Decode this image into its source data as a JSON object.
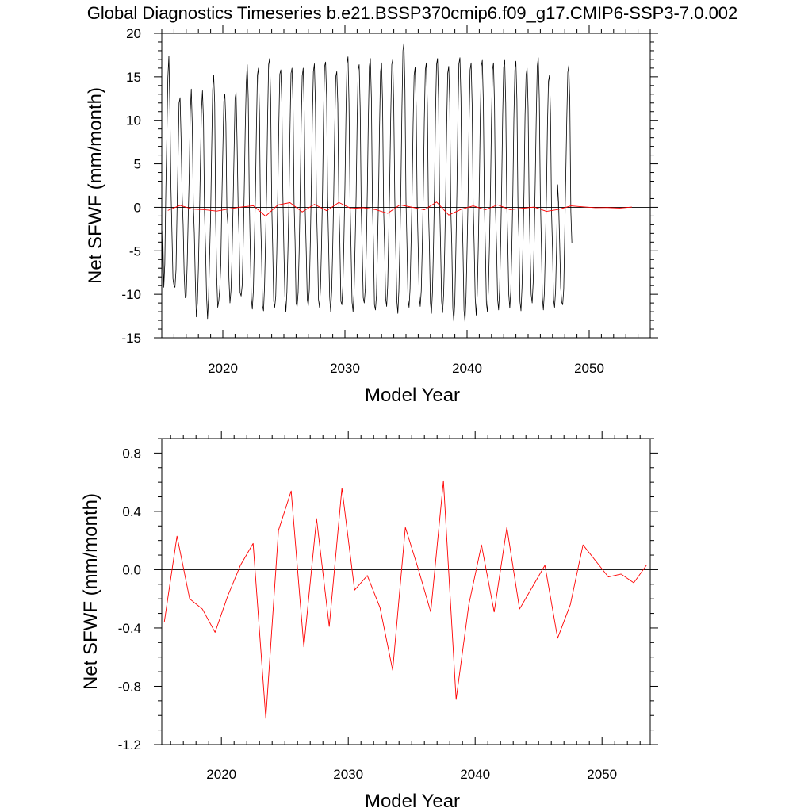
{
  "title": "Global Diagnostics Timeseries b.e21.BSSP370cmip6.f09_g17.CMIP6-SSP3-7.0.002",
  "colors": {
    "monthly": "#000000",
    "annual": "#ff0000",
    "zero_line": "#000000"
  },
  "chart_data": [
    {
      "type": "line",
      "xlabel": "Model Year",
      "ylabel": "Net SFWF (mm/month)",
      "xlim": [
        2015,
        2055
      ],
      "ylim": [
        -15,
        20
      ],
      "xticks": [
        2020,
        2030,
        2040,
        2050
      ],
      "yticks": [
        -15,
        -10,
        -5,
        0,
        5,
        10,
        15,
        20
      ],
      "ytick_labels": [
        "-15",
        "-10",
        "-5",
        "0",
        "5",
        "10",
        "15",
        "20"
      ],
      "grid": false,
      "reference_line": 0,
      "series": [
        {
          "style": "monthly",
          "x_start": 2015.0,
          "x_step": 0.08333,
          "values": [
            -8.5,
            -2.7,
            -9.2,
            -6.5,
            2.0,
            8.0,
            14.9,
            17.4,
            11.3,
            2.5,
            -2.8,
            -8.2,
            -9.0,
            -9.2,
            -7.2,
            -0.5,
            5.5,
            12.0,
            12.6,
            7.8,
            1.5,
            -2.0,
            -7.6,
            -10.4,
            -10.2,
            -6.5,
            -1.0,
            3.8,
            11.0,
            13.6,
            9.3,
            0.5,
            -3.0,
            -8.5,
            -12.6,
            -11.0,
            -7.0,
            -1.3,
            5.0,
            11.2,
            13.4,
            10.0,
            -0.6,
            -4.6,
            -10.2,
            -12.8,
            -10.4,
            -5.6,
            -1.0,
            6.5,
            13.5,
            15.2,
            12.0,
            -1.6,
            -8.0,
            -11.5,
            -10.8,
            -9.4,
            -6.6,
            0.5,
            6.5,
            12.2,
            13.0,
            9.7,
            -0.5,
            -2.0,
            -8.2,
            -11.0,
            -9.6,
            -5.8,
            -0.2,
            6.0,
            12.5,
            13.2,
            7.6,
            0.3,
            -3.5,
            -9.8,
            -10.2,
            -9.0,
            -4.5,
            1.6,
            8.8,
            14.2,
            16.4,
            12.5,
            1.0,
            -4.9,
            -10.5,
            -11.7,
            -9.6,
            -4.1,
            1.2,
            9.0,
            15.2,
            16.0,
            10.8,
            -0.8,
            -5.1,
            -11.3,
            -11.9,
            -9.1,
            -3.8,
            1.8,
            10.2,
            16.4,
            17.1,
            12.6,
            0.7,
            -4.6,
            -10.8,
            -11.5,
            -10.2,
            -5.3,
            1.5,
            9.4,
            15.3,
            15.8,
            12.0,
            1.5,
            -4.8,
            -10.2,
            -12.0,
            -9.7,
            -4.8,
            0.8,
            8.8,
            15.4,
            16.0,
            11.9,
            0.6,
            -3.9,
            -11.0,
            -11.4,
            -9.8,
            -5.1,
            1.4,
            9.6,
            15.1,
            16.0,
            11.0,
            -0.4,
            -5.2,
            -10.6,
            -11.3,
            -9.5,
            -4.0,
            2.6,
            10.3,
            15.6,
            16.5,
            11.8,
            0.4,
            -4.3,
            -10.6,
            -11.5,
            -9.2,
            -4.3,
            2.0,
            10.8,
            16.2,
            16.7,
            12.6,
            1.0,
            -4.5,
            -10.3,
            -12.0,
            -9.6,
            -4.7,
            1.6,
            9.2,
            15.0,
            15.6,
            11.9,
            0.4,
            -3.8,
            -10.8,
            -11.2,
            -9.0,
            -3.8,
            2.4,
            10.6,
            16.5,
            17.3,
            12.0,
            0.8,
            -4.6,
            -10.9,
            -12.0,
            -9.8,
            -4.4,
            1.2,
            9.8,
            15.8,
            16.4,
            11.4,
            0.0,
            -5.0,
            -10.4,
            -11.0,
            -9.4,
            -4.9,
            1.8,
            10.2,
            16.2,
            17.1,
            12.6,
            0.6,
            -4.1,
            -11.2,
            -11.8,
            -10.1,
            -4.6,
            1.0,
            9.2,
            15.6,
            16.6,
            12.0,
            -0.2,
            -4.6,
            -10.5,
            -11.4,
            -9.0,
            -3.5,
            2.8,
            10.6,
            16.4,
            17.0,
            11.4,
            1.0,
            -5.0,
            -10.7,
            -12.2,
            -9.6,
            -4.3,
            2.2,
            11.2,
            18.0,
            18.9,
            13.5,
            0.8,
            -4.5,
            -10.6,
            -11.5,
            -9.4,
            -4.0,
            1.6,
            9.6,
            15.2,
            16.1,
            11.6,
            0.5,
            -4.7,
            -10.2,
            -11.4,
            -9.6,
            -4.6,
            1.5,
            10.0,
            15.8,
            16.6,
            11.8,
            0.3,
            -4.4,
            -11.0,
            -12.2,
            -9.8,
            -4.5,
            2.0,
            10.8,
            16.4,
            17.1,
            12.5,
            1.0,
            -4.5,
            -10.8,
            -12.1,
            -10.0,
            -5.1,
            1.3,
            9.6,
            15.4,
            16.2,
            12.0,
            0.0,
            -4.4,
            -11.6,
            -13.1,
            -10.8,
            -5.0,
            1.6,
            10.2,
            16.5,
            17.2,
            12.6,
            0.2,
            -4.8,
            -11.8,
            -13.2,
            -10.3,
            -5.0,
            1.0,
            9.8,
            15.8,
            16.6,
            11.8,
            0.5,
            -4.4,
            -10.4,
            -12.4,
            -10.0,
            -4.8,
            1.8,
            10.4,
            16.2,
            16.9,
            12.1,
            0.6,
            -4.6,
            -11.0,
            -12.0,
            -9.5,
            -4.5,
            1.6,
            10.0,
            15.8,
            16.6,
            11.7,
            -0.4,
            -4.5,
            -10.5,
            -11.8,
            -9.5,
            -4.3,
            2.3,
            10.6,
            16.1,
            16.9,
            12.0,
            0.5,
            -4.0,
            -10.0,
            -11.6,
            -9.6,
            -4.7,
            1.5,
            10.2,
            15.8,
            16.8,
            12.3,
            0.3,
            -3.5,
            -10.8,
            -11.9,
            -9.2,
            -4.1,
            2.0,
            10.6,
            15.2,
            16.0,
            11.4,
            0.6,
            -5.0,
            -10.0,
            -11.0,
            -8.6,
            -3.8,
            2.8,
            10.3,
            16.2,
            17.2,
            12.5,
            1.3,
            -4.0,
            -10.4,
            -11.8,
            -9.8,
            -4.4,
            1.2,
            9.4,
            14.5,
            15.2,
            10.8,
            -0.5,
            -4.8,
            -10.6,
            -11.5,
            -9.6,
            -4.5,
            2.6,
            0.4,
            -4.0,
            -9.2,
            -10.9,
            -11.2,
            -9.4,
            -3.0,
            3.5,
            10.1,
            15.5,
            16.3,
            12.0,
            -0.5,
            -4.1
          ]
        },
        {
          "style": "annual",
          "x": [
            2015.5,
            2016.5,
            2017.5,
            2018.5,
            2019.5,
            2020.5,
            2021.5,
            2022.5,
            2023.5,
            2024.5,
            2025.5,
            2026.5,
            2027.5,
            2028.5,
            2029.5,
            2030.5,
            2031.5,
            2032.5,
            2033.5,
            2034.5,
            2035.5,
            2036.5,
            2037.5,
            2038.5,
            2039.5,
            2040.5,
            2041.5,
            2042.5,
            2043.5,
            2044.5,
            2045.5,
            2046.5,
            2047.5,
            2048.5,
            2049.5,
            2050.5,
            2051.5,
            2052.5,
            2053.5
          ],
          "values": [
            -0.36,
            0.23,
            -0.2,
            -0.27,
            -0.43,
            -0.18,
            0.03,
            0.18,
            -1.02,
            0.27,
            0.54,
            -0.53,
            0.35,
            -0.39,
            0.56,
            -0.14,
            -0.04,
            -0.26,
            -0.69,
            0.29,
            0.01,
            -0.29,
            0.61,
            -0.89,
            -0.24,
            0.17,
            -0.29,
            0.29,
            -0.27,
            -0.12,
            0.03,
            -0.47,
            -0.24,
            0.17,
            0.06,
            -0.05,
            -0.03,
            -0.09,
            0.03
          ]
        }
      ]
    },
    {
      "type": "line",
      "xlabel": "Model Year",
      "ylabel": "Net SFWF (mm/month)",
      "xlim": [
        2015.3,
        2053.8
      ],
      "ylim": [
        -1.2,
        0.9
      ],
      "xticks": [
        2020,
        2030,
        2040,
        2050
      ],
      "yticks": [
        -1.2,
        -0.8,
        -0.4,
        0.0,
        0.4,
        0.8
      ],
      "ytick_labels": [
        "-1.2",
        "-0.8",
        "-0.4",
        "0.0",
        "0.4",
        "0.8"
      ],
      "grid": false,
      "reference_line": 0,
      "series": [
        {
          "style": "annual",
          "x": [
            2015.5,
            2016.5,
            2017.5,
            2018.5,
            2019.5,
            2020.5,
            2021.5,
            2022.5,
            2023.5,
            2024.5,
            2025.5,
            2026.5,
            2027.5,
            2028.5,
            2029.5,
            2030.5,
            2031.5,
            2032.5,
            2033.5,
            2034.5,
            2035.5,
            2036.5,
            2037.5,
            2038.5,
            2039.5,
            2040.5,
            2041.5,
            2042.5,
            2043.5,
            2044.5,
            2045.5,
            2046.5,
            2047.5,
            2048.5,
            2049.5,
            2050.5,
            2051.5,
            2052.5,
            2053.5
          ],
          "values": [
            -0.36,
            0.23,
            -0.2,
            -0.27,
            -0.43,
            -0.18,
            0.03,
            0.18,
            -1.02,
            0.27,
            0.54,
            -0.53,
            0.35,
            -0.39,
            0.56,
            -0.14,
            -0.04,
            -0.26,
            -0.69,
            0.29,
            0.01,
            -0.29,
            0.61,
            -0.89,
            -0.24,
            0.17,
            -0.29,
            0.29,
            -0.27,
            -0.12,
            0.03,
            -0.47,
            -0.24,
            0.17,
            0.06,
            -0.05,
            -0.03,
            -0.09,
            0.03
          ]
        }
      ]
    }
  ]
}
